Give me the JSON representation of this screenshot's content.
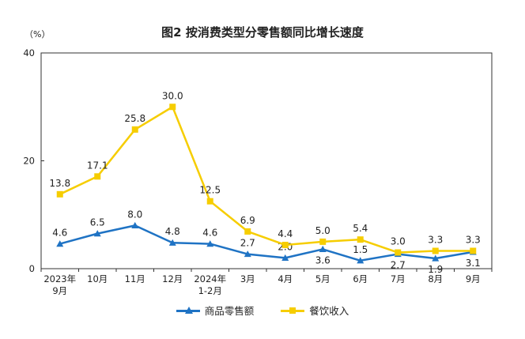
{
  "title": "图2 按消费类型分零售额同比增长速度",
  "unit": "（%）",
  "chart_data": {
    "type": "line",
    "title": "图2 按消费类型分零售额同比增长速度",
    "ylabel": "（%）",
    "ylim": [
      0,
      40
    ],
    "yticks": [
      "0",
      "20",
      "40"
    ],
    "grid": false,
    "legend_position": "bottom",
    "categories": [
      [
        "2023年",
        "9月"
      ],
      [
        "10月"
      ],
      [
        "11月"
      ],
      [
        "12月"
      ],
      [
        "2024年",
        "1-2月"
      ],
      [
        "3月"
      ],
      [
        "4月"
      ],
      [
        "5月"
      ],
      [
        "6月"
      ],
      [
        "7月"
      ],
      [
        "8月"
      ],
      [
        "9月"
      ]
    ],
    "series": [
      {
        "name": "商品零售额",
        "color": "#1f73c4",
        "marker": "triangle",
        "values": [
          4.6,
          6.5,
          8.0,
          4.8,
          4.6,
          2.7,
          2.0,
          3.6,
          1.5,
          2.7,
          1.9,
          3.1
        ],
        "labels": [
          "4.6",
          "6.5",
          "8.0",
          "4.8",
          "4.6",
          "2.7",
          "2.0",
          "3.6",
          "1.5",
          "2.7",
          "1.9",
          "3.1"
        ],
        "label_side": [
          "above",
          "above",
          "above",
          "above",
          "above",
          "above",
          "above",
          "below",
          "above",
          "below",
          "below",
          "below"
        ]
      },
      {
        "name": "餐饮收入",
        "color": "#f6cd00",
        "marker": "square",
        "values": [
          13.8,
          17.1,
          25.8,
          30.0,
          12.5,
          6.9,
          4.4,
          5.0,
          5.4,
          3.0,
          3.3,
          3.3
        ],
        "labels": [
          "13.8",
          "17.1",
          "25.8",
          "30.0",
          "12.5",
          "6.9",
          "4.4",
          "5.0",
          "5.4",
          "3.0",
          "3.3",
          "3.3"
        ],
        "label_side": [
          "above",
          "above",
          "above",
          "above",
          "above",
          "above",
          "above",
          "above",
          "above",
          "above",
          "above",
          "above"
        ]
      }
    ]
  }
}
